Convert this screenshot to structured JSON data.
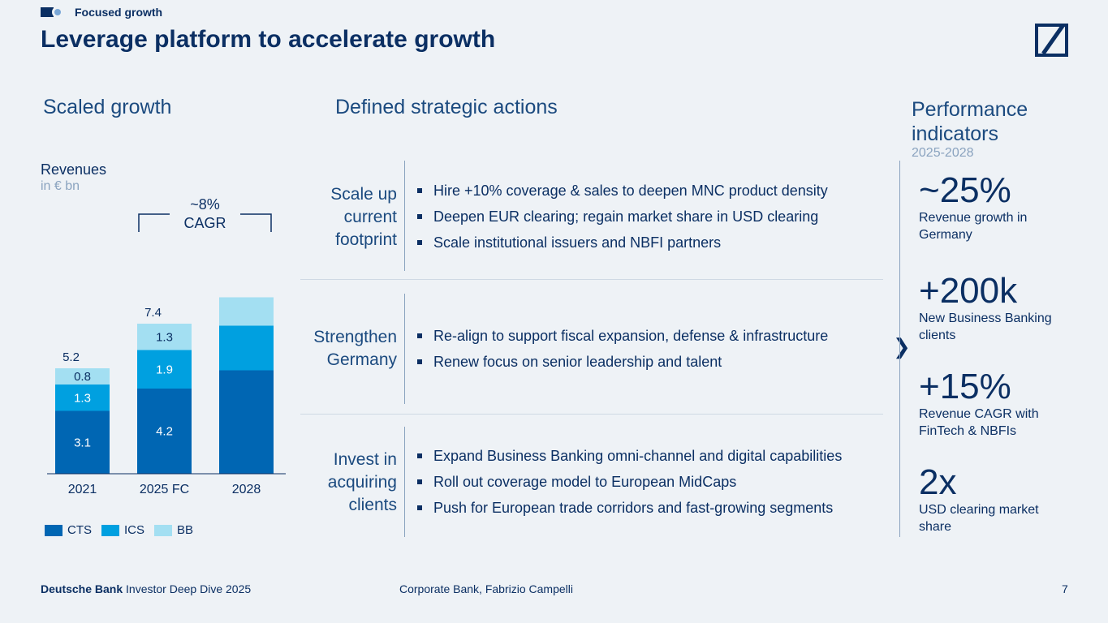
{
  "header": {
    "section_label": "Focused growth",
    "title": "Leverage platform to accelerate growth"
  },
  "columns": {
    "left_heading": "Scaled growth",
    "middle_heading": "Defined strategic actions",
    "right_heading_line1": "Performance",
    "right_heading_line2": "indicators",
    "right_subheading": "2025-2028"
  },
  "revenues": {
    "title": "Revenues",
    "unit": "in € bn"
  },
  "chart_data": {
    "type": "bar",
    "stacked": true,
    "categories": [
      "2021",
      "2025 FC",
      "2028"
    ],
    "series": [
      {
        "name": "CTS",
        "values": [
          3.1,
          4.2,
          5.1
        ],
        "color": "#0066b3"
      },
      {
        "name": "ICS",
        "values": [
          1.3,
          1.9,
          2.2
        ],
        "color": "#00a0e0"
      },
      {
        "name": "BB",
        "values": [
          0.8,
          1.3,
          1.4
        ],
        "color": "#a3dff2"
      }
    ],
    "totals": [
      "5.2",
      "7.4",
      ""
    ],
    "segment_labels": [
      [
        "3.1",
        "1.3",
        "0.8"
      ],
      [
        "4.2",
        "1.9",
        "1.3"
      ],
      [
        "",
        "",
        ""
      ]
    ],
    "ylim": [
      0,
      9
    ],
    "annotation": {
      "line1": "~8%",
      "line2": "CAGR"
    },
    "legend_position": "bottom-left"
  },
  "legend": [
    {
      "label": "CTS",
      "color": "#0066b3"
    },
    {
      "label": "ICS",
      "color": "#00a0e0"
    },
    {
      "label": "BB",
      "color": "#a3dff2"
    }
  ],
  "actions": [
    {
      "heading": [
        "Scale up",
        "current",
        "footprint"
      ],
      "bullets": [
        "Hire +10% coverage & sales to deepen MNC product density",
        "Deepen EUR clearing; regain market share in USD clearing",
        "Scale institutional issuers and NBFI partners"
      ]
    },
    {
      "heading": [
        "Strengthen",
        "Germany"
      ],
      "bullets": [
        "Re-align to support fiscal expansion, defense & infrastructure",
        "Renew focus on senior leadership and talent"
      ]
    },
    {
      "heading": [
        "Invest in",
        "acquiring",
        "clients"
      ],
      "bullets": [
        "Expand Business Banking omni-channel and digital capabilities",
        "Roll out coverage model to European MidCaps",
        "Push for European trade corridors and fast-growing segments"
      ]
    }
  ],
  "arrow_glyph": "❯",
  "kpis": [
    {
      "value": "~25%",
      "line1": "Revenue growth in",
      "line2": "Germany"
    },
    {
      "value": "+200k",
      "line1": "New Business Banking",
      "line2": "clients"
    },
    {
      "value": "+15%",
      "line1": "Revenue CAGR with",
      "line2": "FinTech & NBFIs"
    },
    {
      "value": "2x",
      "line1": "USD clearing market",
      "line2": "share"
    }
  ],
  "footer": {
    "brand": "Deutsche Bank",
    "event": " Investor Deep Dive 2025",
    "center": "Corporate Bank, Fabrizio Campelli",
    "page": "7"
  }
}
